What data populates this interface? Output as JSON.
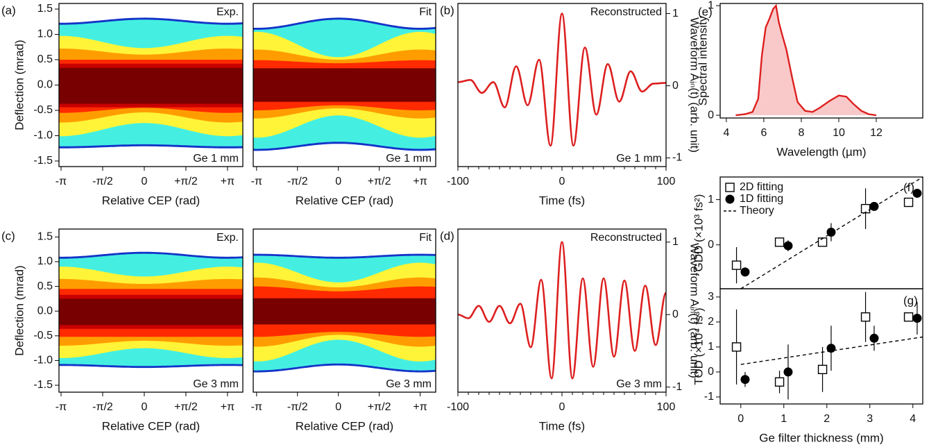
{
  "chart_data": [
    {
      "type": "heatmap",
      "panel_label": "(a)",
      "annotations": [
        "Exp.",
        "Ge 1 mm"
      ],
      "xlabel": "Relative CEP (rad)",
      "ylabel": "Deflection (mrad)",
      "xlim": [
        -3.22,
        3.72
      ],
      "ylim": [
        -1.61,
        1.61
      ],
      "xticks": [
        {
          "value": -3.1416,
          "label": "-π"
        },
        {
          "value": -1.5708,
          "label": "-π/2"
        },
        0,
        {
          "value": 1.5708,
          "label": "+π/2"
        },
        {
          "value": 3.1416,
          "label": "+π"
        }
      ],
      "yticks": [
        -1.5,
        {
          "value": -1,
          "label": "-1.0"
        },
        -0.5,
        {
          "value": 0,
          "label": "0.0"
        },
        0.5,
        {
          "value": 1,
          "label": "1.0"
        },
        1.5
      ]
    },
    {
      "type": "heatmap",
      "annotations": [
        "Fit",
        "Ge 1 mm"
      ],
      "xlabel": "Relative CEP (rad)",
      "xlim": [
        -3.27,
        3.74
      ],
      "ylim": [
        -1.61,
        1.61
      ],
      "xticks": [
        {
          "value": -3.1416,
          "label": "-π"
        },
        {
          "value": -1.5708,
          "label": "-π/2"
        },
        0,
        {
          "value": 1.5708,
          "label": "+π/2"
        },
        {
          "value": 3.1416,
          "label": "+π"
        }
      ]
    },
    {
      "type": "line",
      "panel_label": "(b)",
      "annotations": [
        "Reconstructed",
        "Ge 1 mm"
      ],
      "xlabel": "Time (fs)",
      "ylabel": "Waveform Aᵢₙ(t) (arb. unit)",
      "y_axis_side": "right",
      "xlim": [
        -100,
        100
      ],
      "ylim": [
        -1.12,
        1.14
      ],
      "xticks": [
        -100,
        0,
        100
      ],
      "xminor_ticks": [
        -90,
        -80,
        -70,
        -60,
        -50,
        -40,
        -30,
        -20,
        -10,
        10,
        20,
        30,
        40,
        50,
        60,
        70,
        80,
        90
      ],
      "yticks": [
        -1,
        0,
        1
      ],
      "color": "#dd1f1f",
      "x": [
        -100,
        -88,
        -77,
        -66,
        -55,
        -44,
        -33,
        -22,
        -11,
        0,
        11,
        22,
        33,
        44,
        55,
        66,
        77,
        88,
        100
      ],
      "values": [
        0.05,
        0.08,
        -0.1,
        0.05,
        -0.3,
        0.27,
        -0.27,
        0.36,
        -0.83,
        1.0,
        -0.83,
        0.53,
        -0.4,
        0.3,
        -0.22,
        0.2,
        -0.08,
        0.03,
        0.04
      ]
    },
    {
      "type": "heatmap",
      "panel_label": "(c)",
      "annotations": [
        "Exp.",
        "Ge 3 mm"
      ],
      "xlabel": "Relative CEP (rad)",
      "ylabel": "Deflection (mrad)",
      "xlim": [
        -3.22,
        3.72
      ],
      "ylim": [
        -1.64,
        1.66
      ],
      "xticks": [
        {
          "value": -3.1416,
          "label": "-π"
        },
        {
          "value": -1.5708,
          "label": "-π/2"
        },
        0,
        {
          "value": 1.5708,
          "label": "+π/2"
        },
        {
          "value": 3.1416,
          "label": "+π"
        }
      ],
      "yticks": [
        -1.5,
        {
          "value": -1,
          "label": "-1.0"
        },
        -0.5,
        {
          "value": 0,
          "label": "0.0"
        },
        0.5,
        {
          "value": 1,
          "label": "1.0"
        },
        1.5
      ]
    },
    {
      "type": "heatmap",
      "annotations": [
        "Fit",
        "Ge 3 mm"
      ],
      "xlabel": "Relative CEP (rad)",
      "xlim": [
        -3.27,
        3.74
      ],
      "ylim": [
        -1.64,
        1.66
      ],
      "xticks": [
        {
          "value": -3.1416,
          "label": "-π"
        },
        {
          "value": -1.5708,
          "label": "-π/2"
        },
        0,
        {
          "value": 1.5708,
          "label": "+π/2"
        },
        {
          "value": 3.1416,
          "label": "+π"
        }
      ]
    },
    {
      "type": "line",
      "panel_label": "(d)",
      "annotations": [
        "Reconstructed",
        "Ge 3 mm"
      ],
      "xlabel": "Time (fs)",
      "ylabel": "Waveform Aᵢₙ(t) (arb. unit)",
      "y_axis_side": "right",
      "xlim": [
        -100,
        100
      ],
      "ylim": [
        -1.07,
        1.18
      ],
      "xticks": [
        -100,
        0,
        100
      ],
      "xminor_ticks": [
        -90,
        -80,
        -70,
        -60,
        -50,
        -40,
        -30,
        -20,
        -10,
        10,
        20,
        30,
        40,
        50,
        60,
        70,
        80,
        90
      ],
      "yticks": [
        -1,
        0,
        1
      ],
      "color": "#dd1f1f",
      "x": [
        -100,
        -90,
        -80,
        -70,
        -60,
        -50,
        -40,
        -30,
        -20,
        -10,
        0,
        10,
        20,
        30,
        40,
        50,
        60,
        70,
        80,
        90,
        100
      ],
      "values": [
        0.0,
        -0.05,
        0.12,
        -0.1,
        0.12,
        -0.12,
        0.15,
        -0.45,
        0.48,
        -0.88,
        1.0,
        -0.88,
        0.5,
        -0.72,
        0.5,
        -0.58,
        0.47,
        -0.5,
        0.4,
        -0.42,
        0.3
      ]
    },
    {
      "type": "area",
      "panel_label": "(e)",
      "xlabel": "Wavelength (µm)",
      "ylabel": "Spectral intensity",
      "xlim": [
        3.67,
        14.48
      ],
      "ylim": [
        -0.025,
        1.02
      ],
      "xticks": [
        4,
        6,
        8,
        10,
        12
      ],
      "yticks": [
        0,
        1
      ],
      "color": "#dd1f1f",
      "fill": "#f9c9c9",
      "x": [
        4.5,
        5.0,
        5.4,
        5.7,
        5.9,
        6.1,
        6.3,
        6.5,
        6.65,
        6.8,
        7.0,
        7.2,
        7.5,
        7.8,
        8.2,
        8.6,
        9.0,
        9.5,
        10.0,
        10.4,
        10.8,
        11.2,
        11.6,
        12.0
      ],
      "values": [
        0,
        0.01,
        0.03,
        0.15,
        0.55,
        0.8,
        0.88,
        0.97,
        1.0,
        0.85,
        0.72,
        0.6,
        0.35,
        0.12,
        0.04,
        0.03,
        0.07,
        0.13,
        0.18,
        0.17,
        0.1,
        0.04,
        0.01,
        0
      ]
    },
    {
      "type": "scatter",
      "panel_label": "(f)",
      "ylabel": "GDD (×10³ fs²)",
      "legend": "upper left",
      "xlim": [
        -0.48,
        4.23
      ],
      "ylim": [
        -0.97,
        1.5
      ],
      "yticks": [
        0,
        1
      ],
      "series": [
        {
          "name": "2D fitting",
          "marker": "square",
          "color": "#000000",
          "x": [
            -0.1,
            0.9,
            1.9,
            2.9,
            3.9
          ],
          "values": [
            -0.45,
            0.06,
            0.06,
            0.8,
            0.94
          ],
          "errors": [
            0.4,
            0.1,
            0.08,
            0.45,
            0.1
          ]
        },
        {
          "name": "1D fitting",
          "marker": "circle",
          "color": "#000000",
          "x": [
            0.1,
            1.1,
            2.1,
            3.1,
            4.1
          ],
          "values": [
            -0.6,
            -0.02,
            0.28,
            0.85,
            1.14
          ],
          "errors": [
            0.1,
            0.12,
            0.2,
            0.08,
            0.1
          ]
        },
        {
          "name": "Theory",
          "marker": "dashed",
          "color": "#000000",
          "x": [
            0,
            4.23
          ],
          "values": [
            -0.97,
            1.5
          ]
        }
      ]
    },
    {
      "type": "scatter",
      "panel_label": "(g)",
      "ylabel": "TOD (×10⁴ fs³)",
      "xlabel": "Ge filter thickness (mm)",
      "xlim": [
        -0.48,
        4.23
      ],
      "ylim": [
        -1.28,
        3.33
      ],
      "xticks": [
        0,
        1,
        2,
        3,
        4
      ],
      "yticks": [
        -1,
        0,
        1,
        2,
        3
      ],
      "series": [
        {
          "marker": "square",
          "color": "#000000",
          "x": [
            -0.1,
            0.9,
            1.9,
            2.9,
            3.9
          ],
          "values": [
            1.0,
            -0.4,
            0.1,
            2.2,
            2.2
          ],
          "errors": [
            1.5,
            0.45,
            0.9,
            1.0,
            0.1
          ]
        },
        {
          "marker": "circle",
          "color": "#000000",
          "x": [
            0.1,
            1.1,
            2.1,
            3.1,
            4.1
          ],
          "values": [
            -0.3,
            0.0,
            0.95,
            1.35,
            2.15
          ],
          "errors": [
            0.3,
            1.1,
            0.9,
            0.5,
            0.65
          ]
        },
        {
          "marker": "dashed",
          "color": "#000000",
          "x": [
            0,
            4.23
          ],
          "values": [
            0.3,
            1.4
          ]
        }
      ]
    }
  ]
}
